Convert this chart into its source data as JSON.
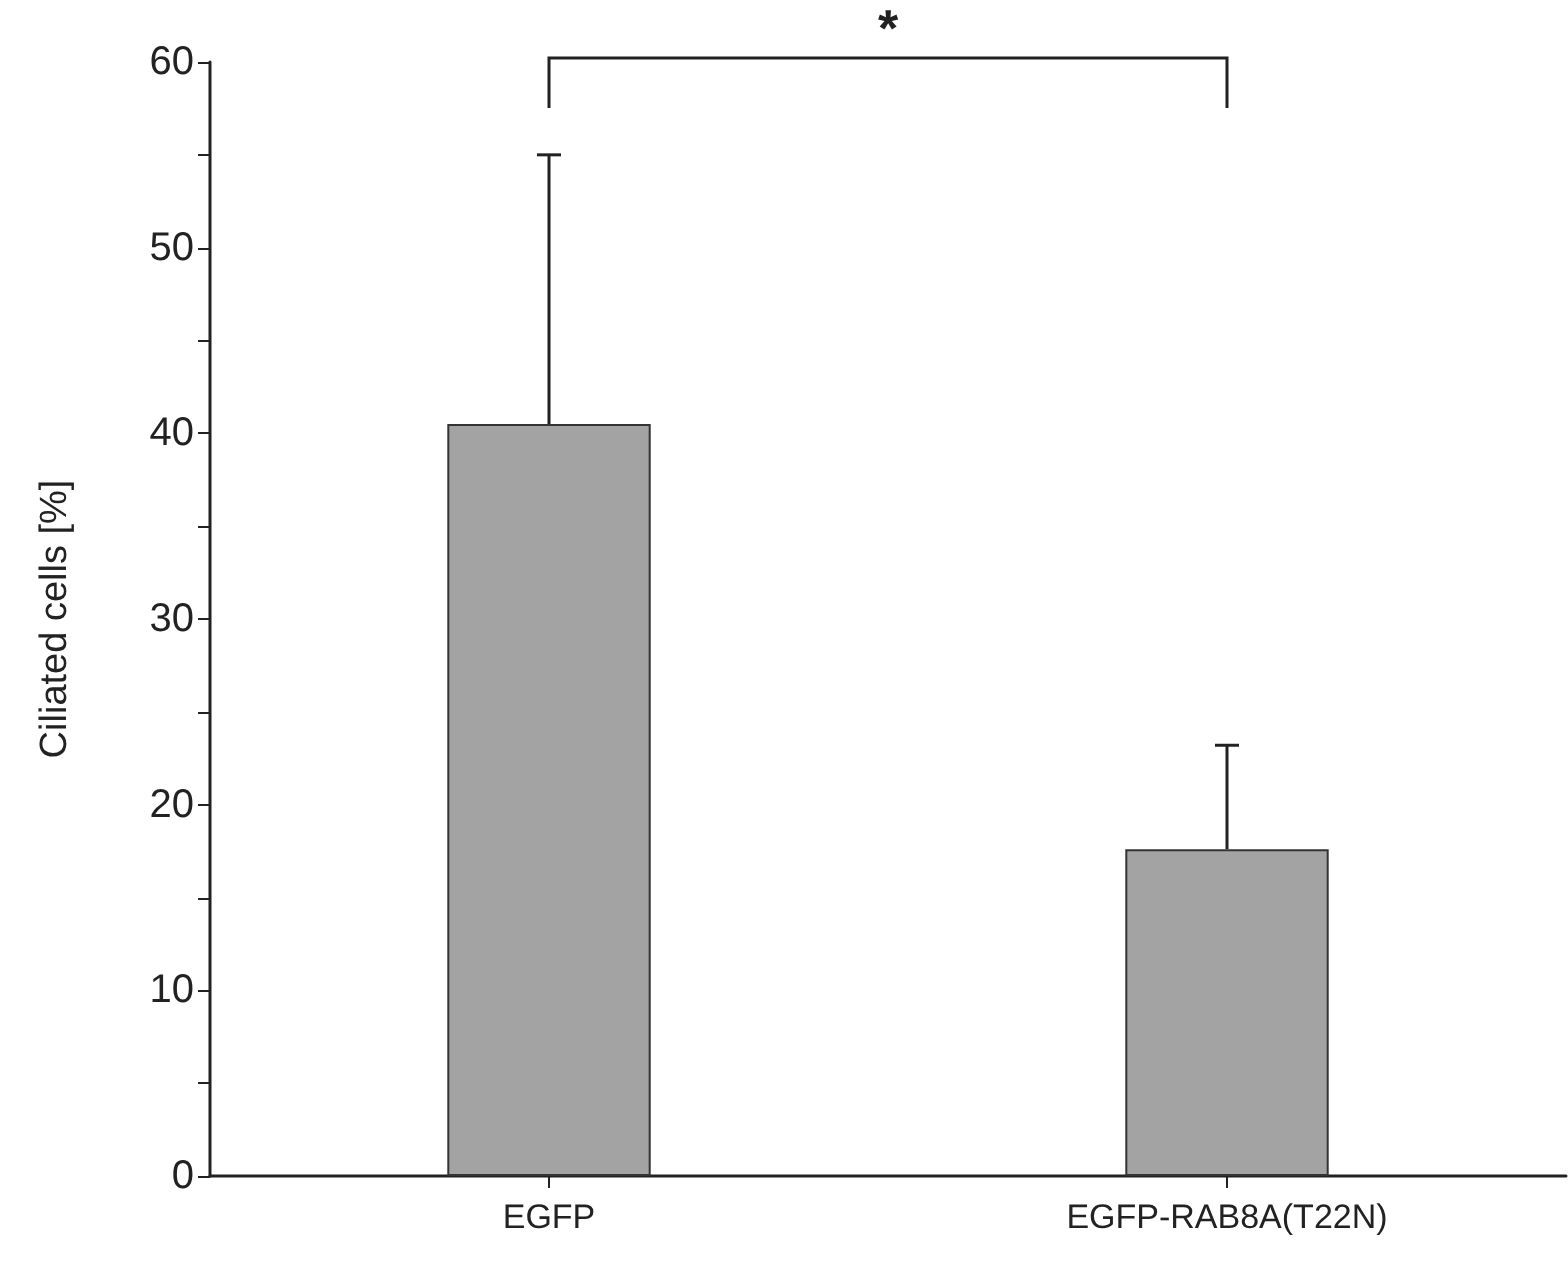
{
  "chart_data": {
    "type": "bar",
    "ylabel": "Ciliated cells [%]",
    "categories": [
      "EGFP",
      "EGFP-RAB8A(T22N)"
    ],
    "series": [
      {
        "color": "#a3a3a3",
        "values": [
          40.5,
          17.6
        ],
        "errors": [
          [
            40.5,
            55
          ],
          [
            17.6,
            23.2
          ]
        ]
      }
    ],
    "ylim": [
      0,
      60
    ],
    "yticks": [
      0,
      {
        "value": 5,
        "label": null
      },
      10,
      {
        "value": 15,
        "label": null
      },
      20,
      {
        "value": 25,
        "label": null
      },
      30,
      {
        "value": 35,
        "label": null
      },
      40,
      {
        "value": 45,
        "label": null
      },
      50,
      {
        "value": 55,
        "label": null
      },
      60
    ],
    "annotations": [
      "*"
    ],
    "grid": false
  }
}
